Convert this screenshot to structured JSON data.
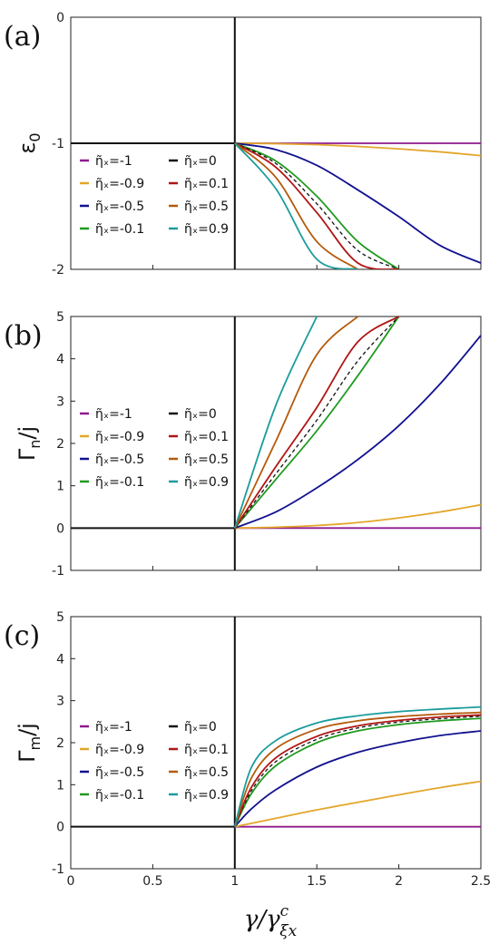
{
  "figure": {
    "xlabel_main": "γ/γ",
    "xlabel_sup": "c",
    "xlabel_sub": "ξx",
    "xticks": [
      "0",
      "0.5",
      "1",
      "1.5",
      "2",
      "2.5"
    ]
  },
  "colors": {
    "-1": "#8e1a8e",
    "-0.9": "#e3a62b",
    "-0.5": "#12128f",
    "-0.1": "#1f9a1f",
    "0": "#111111",
    "0.1": "#b01515",
    "0.5": "#b55a0a",
    "0.9": "#1b9c9c"
  },
  "legend": [
    {
      "key": "-1",
      "label": "η̃ₓ=-1"
    },
    {
      "key": "0",
      "label": "η̃ₓ=0"
    },
    {
      "key": "-0.9",
      "label": "η̃ₓ=-0.9"
    },
    {
      "key": "0.1",
      "label": "η̃ₓ=0.1"
    },
    {
      "key": "-0.5",
      "label": "η̃ₓ=-0.5"
    },
    {
      "key": "0.5",
      "label": "η̃ₓ=0.5"
    },
    {
      "key": "-0.1",
      "label": "η̃ₓ=-0.1"
    },
    {
      "key": "0.9",
      "label": "η̃ₓ=0.9"
    }
  ],
  "chart_data": [
    {
      "type": "line",
      "panel_label": "(a)",
      "ylabel": "ε",
      "ylabel_sub": "0",
      "xlim": [
        0,
        2.5
      ],
      "ylim": [
        -2,
        0
      ],
      "yticks": [
        "0",
        "-1",
        "-2"
      ],
      "x": [
        0,
        1,
        1.25,
        1.5,
        1.75,
        2,
        2.25,
        2.5
      ],
      "series": [
        {
          "name": "η̃ₓ=-1",
          "key": "-1",
          "y": [
            -1,
            -1,
            -1,
            -1,
            -1,
            -1,
            -1,
            -1
          ]
        },
        {
          "name": "η̃ₓ=-0.9",
          "key": "-0.9",
          "y": [
            -1,
            -1,
            -1.003,
            -1.011,
            -1.025,
            -1.044,
            -1.068,
            -1.098
          ]
        },
        {
          "name": "η̃ₓ=-0.5",
          "key": "-0.5",
          "y": [
            -1,
            -1,
            -1.05,
            -1.175,
            -1.37,
            -1.582,
            -1.81,
            -1.95
          ]
        },
        {
          "name": "η̃ₓ=-0.1",
          "key": "-0.1",
          "y": [
            -1,
            -1,
            -1.14,
            -1.42,
            -1.78,
            -2.0,
            null,
            null
          ]
        },
        {
          "name": "η̃ₓ=0",
          "key": "0",
          "dashed": true,
          "y": [
            -1,
            -1,
            -1.16,
            -1.48,
            -1.85,
            -2.0,
            null,
            null
          ]
        },
        {
          "name": "η̃ₓ=0.1",
          "key": "0.1",
          "y": [
            -1,
            -1,
            -1.19,
            -1.55,
            -1.95,
            -2.0,
            null,
            null
          ]
        },
        {
          "name": "η̃ₓ=0.5",
          "key": "0.5",
          "y": [
            -1,
            -1,
            -1.27,
            -1.78,
            -2.0,
            null,
            null,
            null
          ]
        },
        {
          "name": "η̃ₓ=0.9",
          "key": "0.9",
          "y": [
            -1,
            -1,
            -1.36,
            -1.92,
            -2.0,
            null,
            null,
            null
          ]
        }
      ],
      "flat_left": -1
    },
    {
      "type": "line",
      "panel_label": "(b)",
      "ylabel": "Γ",
      "ylabel_sub": "n",
      "ylabel_tail": "/j",
      "xlim": [
        0,
        2.5
      ],
      "ylim": [
        -1,
        5
      ],
      "yticks": [
        "5",
        "4",
        "3",
        "2",
        "1",
        "0",
        "-1"
      ],
      "x": [
        1,
        1.25,
        1.5,
        1.75,
        2,
        2.25,
        2.5
      ],
      "series": [
        {
          "name": "η̃ₓ=-1",
          "key": "-1",
          "y": [
            0,
            0,
            0,
            0,
            0,
            0,
            0
          ]
        },
        {
          "name": "η̃ₓ=-0.9",
          "key": "-0.9",
          "y": [
            0,
            0.02,
            0.06,
            0.13,
            0.24,
            0.38,
            0.55
          ]
        },
        {
          "name": "η̃ₓ=-0.5",
          "key": "-0.5",
          "y": [
            0,
            0.38,
            0.95,
            1.62,
            2.42,
            3.4,
            4.55
          ]
        },
        {
          "name": "η̃ₓ=-0.1",
          "key": "-0.1",
          "y": [
            0,
            1.15,
            2.3,
            3.6,
            5.0,
            null,
            null
          ]
        },
        {
          "name": "η̃ₓ=0",
          "key": "0",
          "dashed": true,
          "y": [
            0,
            1.28,
            2.55,
            3.95,
            5.0,
            null,
            null
          ]
        },
        {
          "name": "η̃ₓ=0.1",
          "key": "0.1",
          "y": [
            0,
            1.45,
            2.85,
            4.4,
            5.0,
            null,
            null
          ]
        },
        {
          "name": "η̃ₓ=0.5",
          "key": "0.5",
          "y": [
            0,
            2.05,
            4.1,
            5.0,
            null,
            null,
            null
          ]
        },
        {
          "name": "η̃ₓ=0.9",
          "key": "0.9",
          "y": [
            0,
            2.9,
            5.0,
            null,
            null,
            null,
            null
          ]
        }
      ],
      "flat_left": 0
    },
    {
      "type": "line",
      "panel_label": "(c)",
      "ylabel": "Γ",
      "ylabel_sub": "m",
      "ylabel_tail": "/j",
      "xlim": [
        0,
        2.5
      ],
      "ylim": [
        -1,
        5
      ],
      "yticks": [
        "5",
        "4",
        "3",
        "2",
        "1",
        "0",
        "-1"
      ],
      "x": [
        1,
        1.1,
        1.25,
        1.5,
        1.75,
        2,
        2.25,
        2.5
      ],
      "series": [
        {
          "name": "η̃ₓ=-1",
          "key": "-1",
          "y": [
            0,
            0,
            0,
            0,
            0,
            0,
            0,
            0
          ]
        },
        {
          "name": "η̃ₓ=-0.9",
          "key": "-0.9",
          "y": [
            0,
            0.08,
            0.2,
            0.4,
            0.58,
            0.76,
            0.93,
            1.08
          ]
        },
        {
          "name": "η̃ₓ=-0.5",
          "key": "-0.5",
          "y": [
            0,
            0.42,
            0.88,
            1.42,
            1.77,
            2.0,
            2.17,
            2.28
          ]
        },
        {
          "name": "η̃ₓ=-0.1",
          "key": "-0.1",
          "y": [
            0,
            0.78,
            1.45,
            2.0,
            2.28,
            2.43,
            2.52,
            2.58
          ]
        },
        {
          "name": "η̃ₓ=0",
          "key": "0",
          "dashed": true,
          "y": [
            0,
            0.85,
            1.55,
            2.08,
            2.35,
            2.49,
            2.57,
            2.63
          ]
        },
        {
          "name": "η̃ₓ=0.1",
          "key": "0.1",
          "y": [
            0,
            0.93,
            1.64,
            2.15,
            2.4,
            2.53,
            2.61,
            2.66
          ]
        },
        {
          "name": "η̃ₓ=0.5",
          "key": "0.5",
          "y": [
            0,
            1.15,
            1.86,
            2.32,
            2.52,
            2.62,
            2.68,
            2.72
          ]
        },
        {
          "name": "η̃ₓ=0.9",
          "key": "0.9",
          "y": [
            0,
            1.4,
            2.05,
            2.47,
            2.64,
            2.74,
            2.8,
            2.85
          ]
        }
      ],
      "flat_left": 0
    }
  ]
}
